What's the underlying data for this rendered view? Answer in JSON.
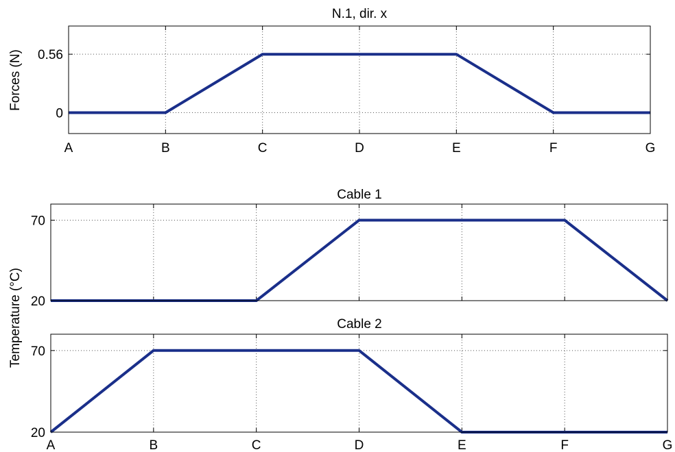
{
  "chart_data": [
    {
      "type": "line",
      "title": "N.1,  dir. x",
      "ylabel": "Forces (N)",
      "xlabel": "",
      "categories": [
        "A",
        "B",
        "C",
        "D",
        "E",
        "F",
        "G"
      ],
      "y_ticks": [
        "0",
        "0.56"
      ],
      "ylim": [
        -0.2,
        0.83
      ],
      "grid": true,
      "series": [
        {
          "values": [
            0,
            0,
            0.56,
            0.56,
            0.56,
            0,
            0
          ]
        }
      ],
      "line_color": "#1a2f8a"
    },
    {
      "type": "line",
      "title": "Cable 1",
      "ylabel": "Temperature (°C)",
      "xlabel": "",
      "categories": [
        "A",
        "B",
        "C",
        "D",
        "E",
        "F",
        "G"
      ],
      "y_ticks": [
        "20",
        "70"
      ],
      "ylim": [
        20,
        80
      ],
      "grid": true,
      "series": [
        {
          "values": [
            20,
            20,
            20,
            70,
            70,
            70,
            20
          ]
        }
      ],
      "line_color": "#1a2f8a"
    },
    {
      "type": "line",
      "title": "Cable 2",
      "ylabel": "",
      "xlabel": "",
      "categories": [
        "A",
        "B",
        "C",
        "D",
        "E",
        "F",
        "G"
      ],
      "y_ticks": [
        "20",
        "70"
      ],
      "ylim": [
        20,
        80
      ],
      "grid": true,
      "series": [
        {
          "values": [
            20,
            70,
            70,
            70,
            20,
            20,
            20
          ]
        }
      ],
      "line_color": "#1a2f8a"
    }
  ]
}
